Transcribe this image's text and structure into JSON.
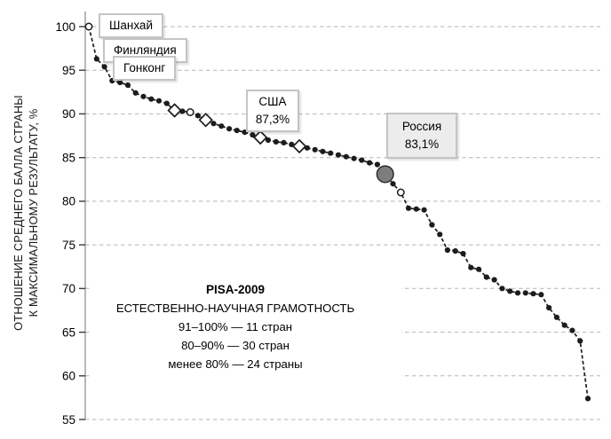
{
  "chart_data": {
    "type": "line",
    "title": "PISA-2009",
    "subtitle": "ЕСТЕСТВЕННО-НАУЧНАЯ ГРАМОТНОСТЬ",
    "ylabel_line1": "ОТНОШЕНИЕ СРЕДНЕГО БАЛЛА СТРАНЫ",
    "ylabel_line2": "К МАКСИМАЛЬНОМУ РЕЗУЛЬТАТУ, %",
    "xlabel": "",
    "x_meaning": "страны, ранжированные по среднему баллу",
    "ylim": [
      55,
      100
    ],
    "yticks": [
      100,
      95,
      90,
      85,
      80,
      75,
      70,
      65,
      60,
      55
    ],
    "grid": "horizontal dashed",
    "line_style": "dashed",
    "values": [
      100.0,
      96.3,
      95.4,
      93.8,
      93.6,
      93.3,
      92.4,
      92.0,
      91.7,
      91.5,
      91.2,
      90.4,
      90.3,
      90.2,
      89.8,
      89.3,
      88.9,
      88.6,
      88.3,
      88.1,
      87.9,
      87.6,
      87.3,
      87.0,
      86.8,
      86.7,
      86.5,
      86.3,
      86.1,
      85.9,
      85.7,
      85.5,
      85.3,
      85.1,
      84.9,
      84.7,
      84.4,
      84.2,
      83.1,
      82.0,
      81.0,
      79.2,
      79.1,
      79.0,
      77.3,
      76.2,
      74.4,
      74.3,
      74.0,
      72.4,
      72.2,
      71.3,
      71.0,
      70.0,
      69.7,
      69.5,
      69.5,
      69.4,
      69.3,
      67.8,
      66.7,
      65.8,
      65.2,
      64.0,
      57.4
    ],
    "marker_overrides": {
      "0": "open-circle",
      "11": "diamond",
      "13": "open-circle",
      "15": "diamond",
      "22": "diamond",
      "27": "diamond",
      "38": "russia-circle",
      "40": "open-circle"
    },
    "labeled_points": {
      "0": "Шанхай — 100%",
      "1": "Финляндия",
      "2": "Гонконг",
      "22": "США — 87,3%",
      "38": "Россия — 83,1%"
    },
    "style": {
      "point_color": "#1c1c1c",
      "russia_fill": "#7d7d7d",
      "russia_stroke": "#2e2e2e",
      "grid_color": "#b5b5b5",
      "axis_color": "#9a9a9a",
      "tick_color": "#3a3a3a",
      "callout_border": "#c4c4c4",
      "russia_callout_bg": "#ececec"
    }
  },
  "callouts": {
    "shanghai": {
      "label": "Шанхай"
    },
    "finland": {
      "label": "Финляндия"
    },
    "hongkong": {
      "label": "Гонконг"
    },
    "usa": {
      "name": "США",
      "value": "87,3%"
    },
    "russia": {
      "name": "Россия",
      "value": "83,1%"
    }
  },
  "annotation": {
    "line1": "PISA-2009",
    "line2": "ЕСТЕСТВЕННО-НАУЧНАЯ ГРАМОТНОСТЬ",
    "line3": "91–100% — 11 стран",
    "line4": "80–90% — 30 стран",
    "line5": "менее 80% — 24 страны"
  }
}
